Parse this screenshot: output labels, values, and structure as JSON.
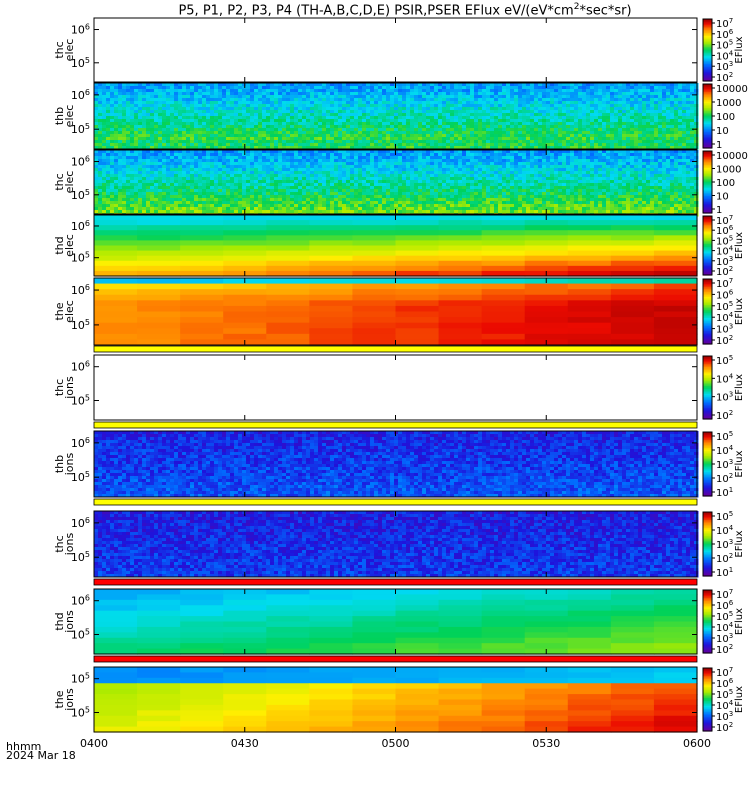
{
  "chart_data": {
    "type": "heatmap",
    "title": "P5, P1, P2, P3, P4 (TH-A,B,C,D,E) PSIR,PSER EFlux eV/(eV*cm2*sec*sr)",
    "title_parts": {
      "pre": "P5, P1, P2, P3, P4 (TH-A,B,C,D,E) PSIR,PSER EFlux eV/(eV*cm",
      "sup": "2",
      "post": "*sec*sr)"
    },
    "x_axis": {
      "tick_labels": [
        "0400",
        "0430",
        "0500",
        "0530",
        "0600"
      ],
      "unit_label": "hhmm",
      "date_label": "2024 Mar 18",
      "range": [
        "04:00",
        "06:00"
      ]
    },
    "colormap": "rainbow (purple-blue-cyan-green-yellow-red-darkred)",
    "panels": [
      {
        "ylabel": [
          "thc",
          "elec"
        ],
        "yticks": [
          "10^6",
          "10^5"
        ],
        "colorbar": {
          "label": "EFlux",
          "ticks": [
            "10^7",
            "10^6",
            "10^5",
            "10^4",
            "10^3",
            "10^2"
          ]
        },
        "data": "none",
        "flag_bar_below": ""
      },
      {
        "ylabel": [
          "thb",
          "elec"
        ],
        "yticks": [
          "10^6",
          "10^5"
        ],
        "colorbar": {
          "label": "",
          "ticks": [
            "10000",
            "1000",
            "100",
            "10",
            "1"
          ]
        },
        "data": "noisy",
        "flag_bar_below": ""
      },
      {
        "ylabel": [
          "thc",
          "elec"
        ],
        "yticks": [
          "10^6",
          "10^5"
        ],
        "colorbar": {
          "label": "",
          "ticks": [
            "10000",
            "1000",
            "100",
            "10",
            "1"
          ]
        },
        "data": "noisy",
        "flag_bar_below": ""
      },
      {
        "ylabel": [
          "thd",
          "elec"
        ],
        "yticks": [
          "10^6",
          "10^5"
        ],
        "colorbar": {
          "label": "EFlux",
          "ticks": [
            "10^7",
            "10^6",
            "10^5",
            "10^4",
            "10^3",
            "10^2"
          ]
        },
        "data": "smooth",
        "flag_bar_below": ""
      },
      {
        "ylabel": [
          "the",
          "elec"
        ],
        "yticks": [
          "10^6",
          "10^5"
        ],
        "colorbar": {
          "label": "EFlux",
          "ticks": [
            "10^7",
            "10^6",
            "10^5",
            "10^4",
            "10^3",
            "10^2"
          ]
        },
        "data": "smooth",
        "flag_bar_below": "#ffff00"
      },
      {
        "ylabel": [
          "thc",
          "ions"
        ],
        "yticks": [
          "10^6",
          "10^5"
        ],
        "colorbar": {
          "label": "EFlux",
          "ticks": [
            "10^5",
            "10^4",
            "10^3",
            "10^2"
          ]
        },
        "data": "none",
        "flag_bar_below": "#ffff00"
      },
      {
        "ylabel": [
          "thb",
          "ions"
        ],
        "yticks": [
          "10^6",
          "10^5"
        ],
        "colorbar": {
          "label": "EFlux",
          "ticks": [
            "10^5",
            "10^4",
            "10^3",
            "10^2",
            "10^1"
          ]
        },
        "data": "noisy",
        "flag_bar_below": "#ffff00"
      },
      {
        "ylabel": [
          "thc",
          "ions"
        ],
        "yticks": [
          "10^6",
          "10^5"
        ],
        "colorbar": {
          "label": "EFlux",
          "ticks": [
            "10^5",
            "10^4",
            "10^3",
            "10^2",
            "10^1"
          ]
        },
        "data": "noisy",
        "flag_bar_below": "#ff0000"
      },
      {
        "ylabel": [
          "thd",
          "ions"
        ],
        "yticks": [
          "10^6",
          "10^5"
        ],
        "colorbar": {
          "label": "EFlux",
          "ticks": [
            "10^7",
            "10^6",
            "10^5",
            "10^4",
            "10^3",
            "10^2"
          ]
        },
        "data": "smooth",
        "flag_bar_below": "#ff0000"
      },
      {
        "ylabel": [
          "the",
          "ions"
        ],
        "yticks": [
          "10^5",
          "10^5"
        ],
        "colorbar": {
          "label": "EFlux",
          "ticks": [
            "10^7",
            "10^6",
            "10^5",
            "10^4",
            "10^3",
            "10^2"
          ]
        },
        "data": "smooth",
        "flag_bar_below": ""
      }
    ]
  }
}
